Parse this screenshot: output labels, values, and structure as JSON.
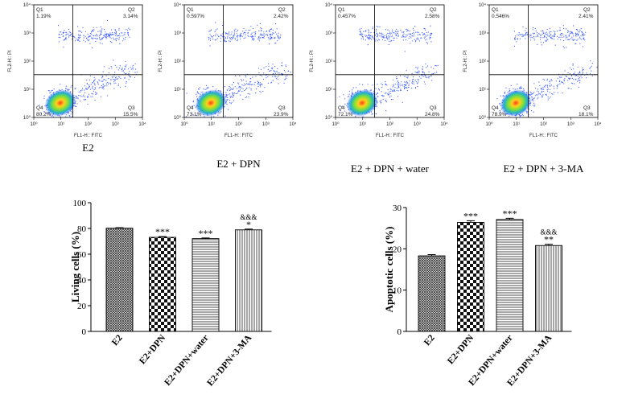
{
  "flow_panels": [
    {
      "caption": "E2",
      "q1": "Q1",
      "q1_pct": "1.19%",
      "q2": "Q2",
      "q2_pct": "3.14%",
      "q3": "Q3",
      "q3_pct": "15.5%",
      "q4": "Q4",
      "q4_pct": "80.2%",
      "xlabel": "FL1-H:: FITC",
      "ylabel": "FL2-H:: PI"
    },
    {
      "caption": "E2 + DPN",
      "q1": "Q1",
      "q1_pct": "0.597%",
      "q2": "Q2",
      "q2_pct": "2.42%",
      "q3": "Q3",
      "q3_pct": "23.9%",
      "q4": "Q4",
      "q4_pct": "73.1%",
      "xlabel": "FL1-H:: FITC",
      "ylabel": "FL2-H:: PI"
    },
    {
      "caption": "E2 + DPN + water",
      "q1": "Q1",
      "q1_pct": "0.457%",
      "q2": "Q2",
      "q2_pct": "2.58%",
      "q3": "Q3",
      "q3_pct": "24.8%",
      "q4": "Q4",
      "q4_pct": "72.1%",
      "xlabel": "FL1-H:: FITC",
      "ylabel": "FL2-H:: PI"
    },
    {
      "caption": "E2 + DPN + 3-MA",
      "q1": "Q1",
      "q1_pct": "0.546%",
      "q2": "Q2",
      "q2_pct": "2.41%",
      "q3": "Q3",
      "q3_pct": "18.1%",
      "q4": "Q4",
      "q4_pct": "78.9%",
      "xlabel": "FL1-H:: FITC",
      "ylabel": "FL2-H:: PI"
    }
  ],
  "flow_ticks": {
    "x": [
      "10⁰",
      "10¹",
      "10²",
      "10³",
      "10⁴"
    ],
    "y": [
      "10⁰",
      "10¹",
      "10²",
      "10³",
      "10⁴"
    ]
  },
  "chart_data": [
    {
      "type": "bar",
      "title": "",
      "xlabel": "",
      "ylabel": "Living cells (%)",
      "categories": [
        "E2",
        "E2+DPN",
        "E2+DPN+water",
        "E2+DPN+3-MA"
      ],
      "values": [
        80.2,
        73.1,
        72.1,
        78.9
      ],
      "errors": [
        0.4,
        0.6,
        0.5,
        0.6
      ],
      "yticks": [
        "0",
        "20",
        "40",
        "60",
        "80",
        "100"
      ],
      "ylim": [
        0,
        100
      ],
      "significance": [
        "",
        "***",
        "***",
        "*"
      ],
      "significance2": [
        "",
        "",
        "",
        "&&&"
      ],
      "patterns": [
        "crosshatch",
        "checker",
        "horizontal",
        "vertical"
      ]
    },
    {
      "type": "bar",
      "title": "",
      "xlabel": "",
      "ylabel": "Apoptotic cells (%)",
      "categories": [
        "E2",
        "E2+DPN",
        "E2+DPN+water",
        "E2+DPN+3-MA"
      ],
      "values": [
        18.3,
        26.4,
        27.1,
        20.8
      ],
      "errors": [
        0.3,
        0.4,
        0.3,
        0.3
      ],
      "yticks": [
        "0",
        "10",
        "20",
        "30"
      ],
      "ylim": [
        0,
        30
      ],
      "significance": [
        "",
        "***",
        "***",
        "**"
      ],
      "significance2": [
        "",
        "",
        "",
        "&&&"
      ],
      "patterns": [
        "crosshatch",
        "checker",
        "horizontal",
        "vertical"
      ]
    }
  ]
}
